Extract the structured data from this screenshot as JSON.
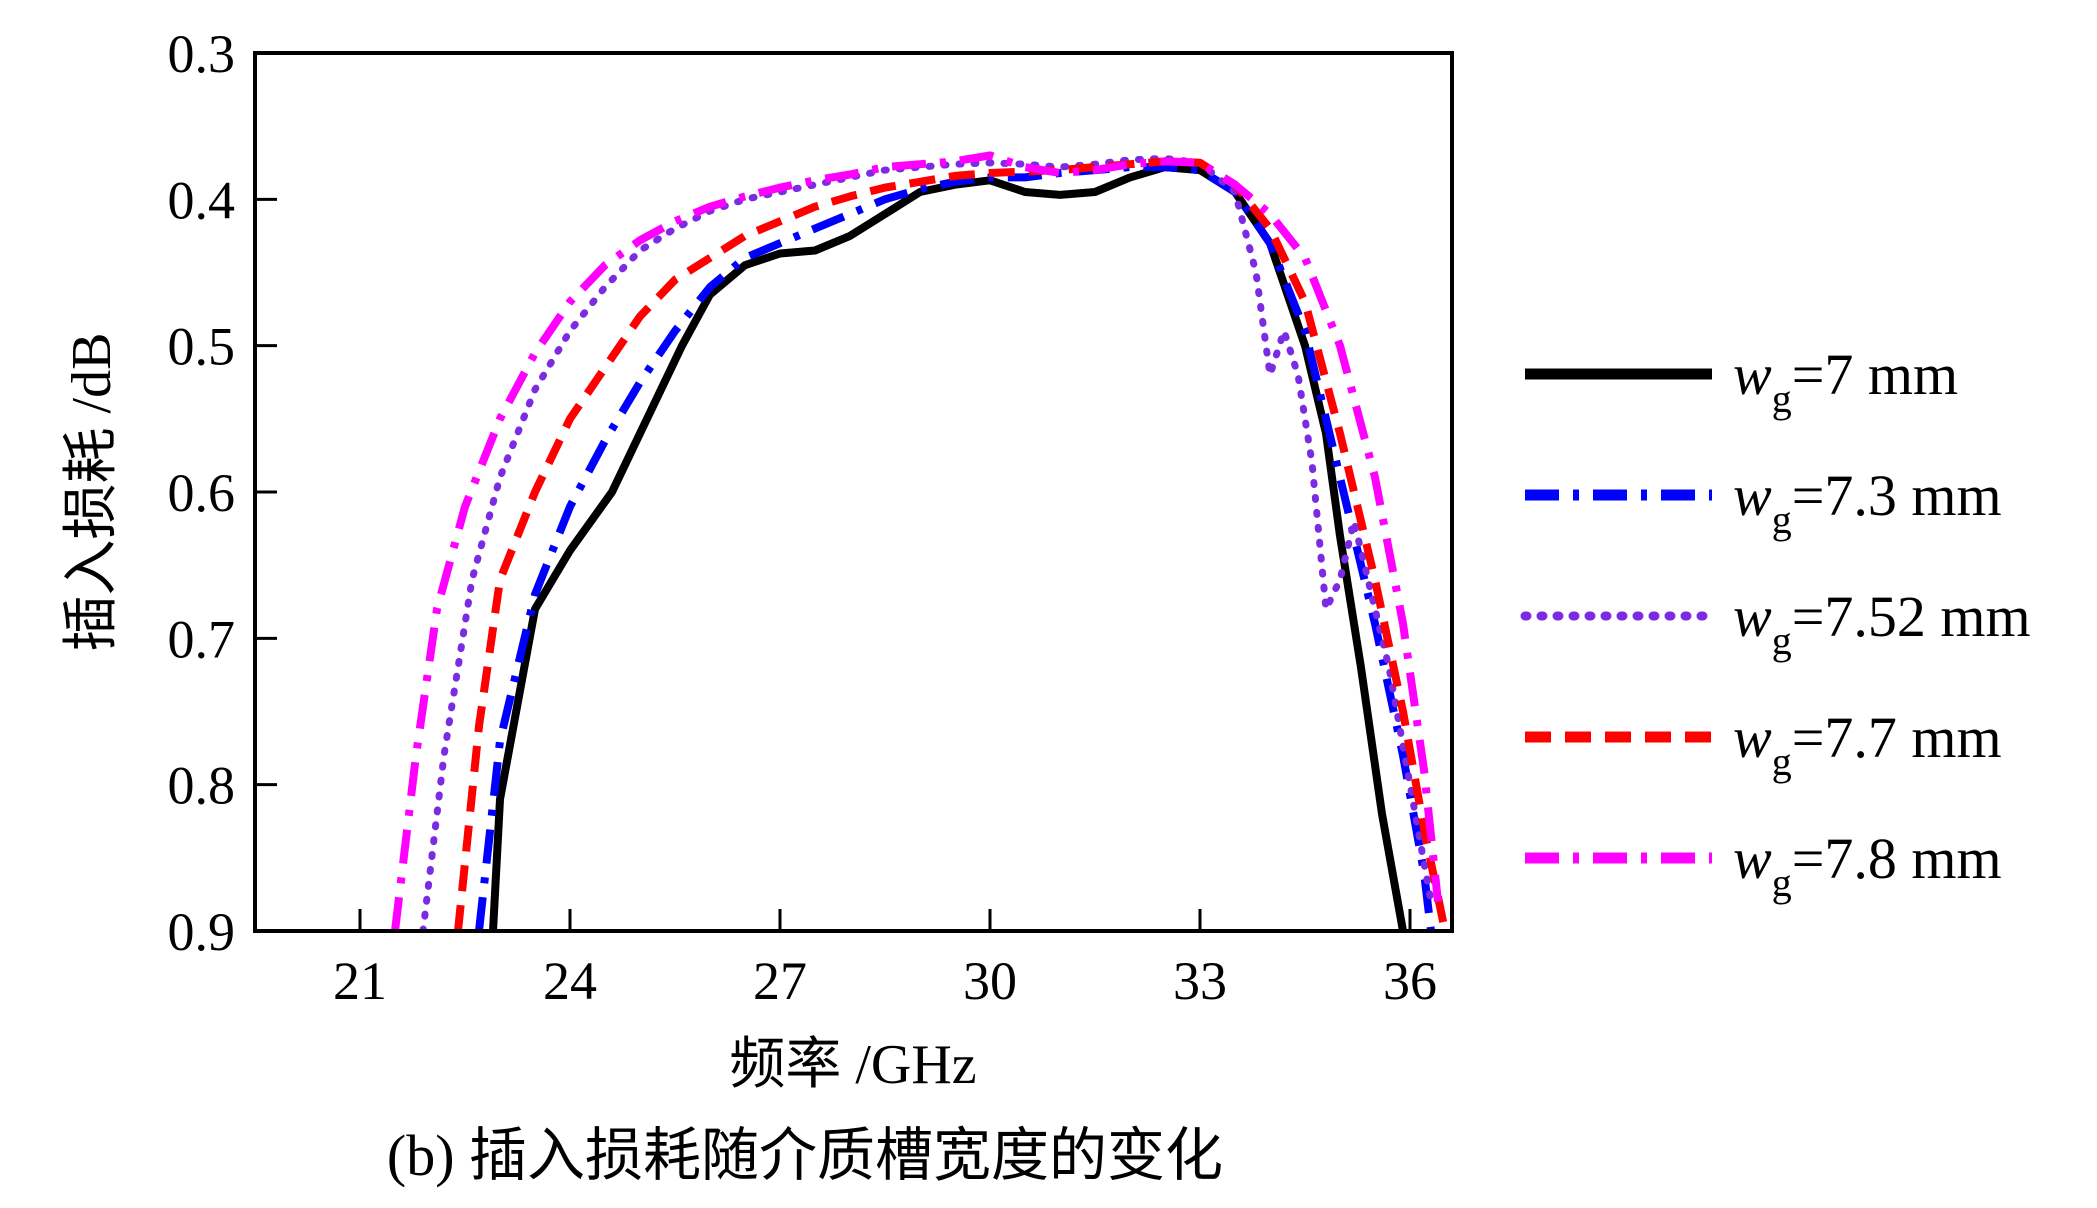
{
  "caption": "(b) 插入损耗随介质槽宽度的变化",
  "chart_data": {
    "type": "line",
    "title": "",
    "xlabel": "频率 /GHz",
    "ylabel": "插入损耗 /dB",
    "xlim": [
      19.5,
      36.6
    ],
    "ylim": [
      0.3,
      0.9
    ],
    "y_inverted": true,
    "x_ticks": [
      21,
      24,
      27,
      30,
      33,
      36
    ],
    "y_ticks": [
      0.3,
      0.4,
      0.5,
      0.6,
      0.7,
      0.8,
      0.9
    ],
    "x_tick_labels": [
      "21",
      "24",
      "27",
      "30",
      "33",
      "36"
    ],
    "y_tick_labels": [
      "0.3",
      "0.4",
      "0.5",
      "0.6",
      "0.7",
      "0.8",
      "0.9"
    ],
    "grid": false,
    "legend_position": "right",
    "series": [
      {
        "name": "w_g=7 mm",
        "label_var": "w",
        "label_sub": "g",
        "label_rest": "=7 mm",
        "color": "#000000",
        "dash": "solid",
        "x": [
          22.9,
          23.0,
          23.5,
          24.0,
          24.6,
          25.1,
          25.6,
          26.0,
          26.5,
          27.0,
          27.5,
          28.0,
          28.5,
          29.0,
          29.5,
          30.0,
          30.5,
          31.0,
          31.5,
          32.0,
          32.5,
          33.0,
          33.5,
          34.0,
          34.5,
          34.8,
          35.0,
          35.3,
          35.6,
          35.9
        ],
        "y": [
          0.9,
          0.81,
          0.68,
          0.64,
          0.6,
          0.55,
          0.5,
          0.465,
          0.445,
          0.437,
          0.435,
          0.425,
          0.41,
          0.395,
          0.39,
          0.387,
          0.395,
          0.397,
          0.395,
          0.385,
          0.378,
          0.38,
          0.395,
          0.43,
          0.5,
          0.56,
          0.63,
          0.72,
          0.82,
          0.9
        ]
      },
      {
        "name": "w_g=7.3 mm",
        "label_var": "w",
        "label_sub": "g",
        "label_rest": "=7.3 mm",
        "color": "#0000ff",
        "dash": "dashdot",
        "x": [
          22.7,
          23.0,
          23.5,
          24.0,
          24.5,
          25.0,
          25.5,
          26.0,
          26.5,
          27.0,
          27.5,
          28.0,
          28.5,
          29.0,
          29.5,
          30.0,
          30.5,
          31.0,
          31.5,
          32.0,
          32.5,
          33.0,
          33.5,
          34.0,
          34.5,
          35.0,
          35.5,
          35.9,
          36.2,
          36.3
        ],
        "y": [
          0.9,
          0.77,
          0.67,
          0.61,
          0.565,
          0.525,
          0.49,
          0.46,
          0.44,
          0.43,
          0.42,
          0.41,
          0.4,
          0.393,
          0.388,
          0.385,
          0.385,
          0.382,
          0.38,
          0.378,
          0.378,
          0.38,
          0.395,
          0.43,
          0.49,
          0.59,
          0.69,
          0.78,
          0.86,
          0.9
        ]
      },
      {
        "name": "w_g=7.52 mm",
        "label_var": "w",
        "label_sub": "g",
        "label_rest": "=7.52 mm",
        "color": "#7b2be2",
        "dash": "dotted",
        "x": [
          21.9,
          22.2,
          22.6,
          23.0,
          23.5,
          24.0,
          24.5,
          25.0,
          25.5,
          26.0,
          26.5,
          27.0,
          27.5,
          28.0,
          28.5,
          29.0,
          29.5,
          30.0,
          30.5,
          31.0,
          31.5,
          32.0,
          32.5,
          33.0,
          33.5,
          33.8,
          34.0,
          34.2,
          34.4,
          34.6,
          34.8,
          35.0,
          35.2,
          35.4,
          35.7,
          36.0,
          36.3
        ],
        "y": [
          0.9,
          0.78,
          0.66,
          0.59,
          0.53,
          0.49,
          0.46,
          0.435,
          0.42,
          0.408,
          0.4,
          0.395,
          0.39,
          0.385,
          0.38,
          0.378,
          0.376,
          0.375,
          0.376,
          0.378,
          0.376,
          0.373,
          0.372,
          0.375,
          0.395,
          0.45,
          0.52,
          0.49,
          0.52,
          0.58,
          0.68,
          0.66,
          0.62,
          0.66,
          0.72,
          0.8,
          0.88
        ]
      },
      {
        "name": "w_g=7.7 mm",
        "label_var": "w",
        "label_sub": "g",
        "label_rest": "=7.7 mm",
        "color": "#ff0000",
        "dash": "dashed",
        "x": [
          22.4,
          22.7,
          23.0,
          23.5,
          24.0,
          24.5,
          25.0,
          25.5,
          26.0,
          26.5,
          27.0,
          27.5,
          28.0,
          28.5,
          29.0,
          29.5,
          30.0,
          30.5,
          31.0,
          31.5,
          32.0,
          32.5,
          33.0,
          33.5,
          34.0,
          34.5,
          35.0,
          35.5,
          35.9,
          36.2,
          36.5
        ],
        "y": [
          0.9,
          0.76,
          0.66,
          0.6,
          0.55,
          0.515,
          0.48,
          0.455,
          0.44,
          0.425,
          0.415,
          0.405,
          0.398,
          0.392,
          0.388,
          0.384,
          0.382,
          0.381,
          0.38,
          0.378,
          0.376,
          0.374,
          0.375,
          0.39,
          0.42,
          0.47,
          0.56,
          0.66,
          0.75,
          0.83,
          0.9
        ]
      },
      {
        "name": "w_g=7.8 mm",
        "label_var": "w",
        "label_sub": "g",
        "label_rest": "=7.8 mm",
        "color": "#ff00ff",
        "dash": "dashdot",
        "x": [
          21.5,
          21.8,
          22.1,
          22.5,
          23.0,
          23.5,
          24.0,
          24.5,
          25.0,
          25.5,
          26.0,
          26.5,
          27.0,
          27.5,
          28.0,
          28.5,
          29.0,
          29.5,
          30.0,
          30.5,
          31.0,
          31.5,
          32.0,
          32.5,
          33.0,
          33.5,
          34.0,
          34.5,
          35.0,
          35.5,
          35.9,
          36.2,
          36.4
        ],
        "y": [
          0.9,
          0.78,
          0.68,
          0.61,
          0.55,
          0.505,
          0.47,
          0.445,
          0.428,
          0.415,
          0.405,
          0.398,
          0.392,
          0.387,
          0.383,
          0.378,
          0.376,
          0.374,
          0.37,
          0.378,
          0.382,
          0.38,
          0.376,
          0.374,
          0.375,
          0.39,
          0.41,
          0.44,
          0.5,
          0.59,
          0.69,
          0.79,
          0.88
        ]
      }
    ]
  }
}
